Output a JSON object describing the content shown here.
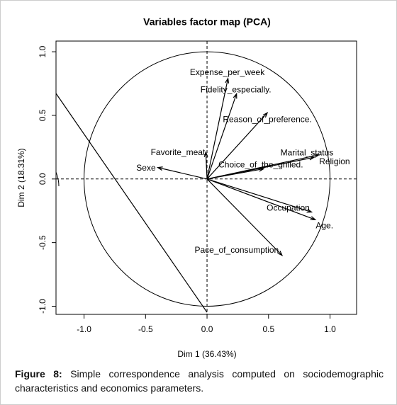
{
  "chart_data": {
    "type": "vector",
    "title": "Variables factor map (PCA)",
    "xlabel": "Dim 1 (36.43%)",
    "ylabel": "Dim 2 (18.31%)",
    "xlim": [
      -1.228,
      1.216
    ],
    "ylim": [
      -1.064,
      1.084
    ],
    "xticks": [
      {
        "value": -1,
        "label": "-1.0"
      },
      {
        "value": -0.5,
        "label": "-0.5"
      },
      {
        "value": 0,
        "label": "0.0"
      },
      {
        "value": 0.5,
        "label": "0.5"
      },
      {
        "value": 1,
        "label": "1.0"
      }
    ],
    "yticks": [
      {
        "value": -1,
        "label": "-1.0"
      },
      {
        "value": -0.5,
        "label": "-0.5"
      },
      {
        "value": 0,
        "label": "0.0"
      },
      {
        "value": 0.5,
        "label": "0.5"
      },
      {
        "value": 1,
        "label": "1.0"
      }
    ],
    "color": "#000000",
    "points": [
      {
        "label": "Expense_per_week",
        "x": 0.17,
        "y": 0.79
      },
      {
        "label": "Fidelity_especially.",
        "x": 0.24,
        "y": 0.67
      },
      {
        "label": "Reason_of_preference.",
        "x": 0.49,
        "y": 0.52
      },
      {
        "label": "Favorite_meat",
        "x": -0.01,
        "y": 0.21
      },
      {
        "label": "Sexe",
        "x": -0.4,
        "y": 0.09
      },
      {
        "label": "Marital_status",
        "x": 0.87,
        "y": 0.17
      },
      {
        "label": "Religion",
        "x": 0.91,
        "y": 0.19
      },
      {
        "label": "Choice_of_the_grilled.",
        "x": 0.46,
        "y": 0.08
      },
      {
        "label": "Occupation",
        "x": 0.85,
        "y": -0.26
      },
      {
        "label": "Age.",
        "x": 0.88,
        "y": -0.32
      },
      {
        "label": "Pace_of_consumption",
        "x": 0.61,
        "y": -0.6
      }
    ]
  },
  "caption_label": "Figure 8:",
  "caption": "Simple correspondence analysis computed on sociodemographic characteristics and economics parameters."
}
